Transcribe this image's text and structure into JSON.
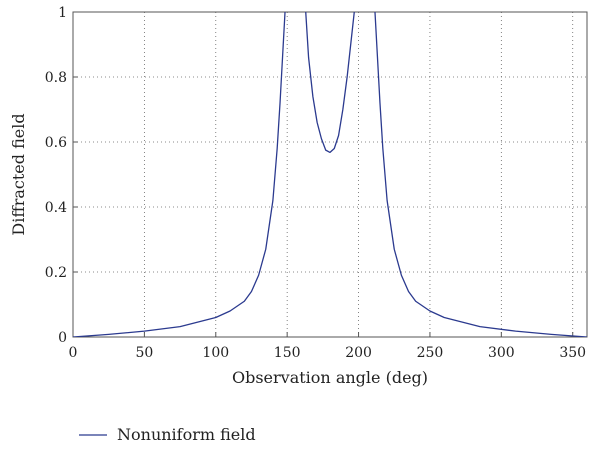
{
  "chart_data": {
    "type": "line",
    "title": "",
    "xlabel": "Observation angle (deg)",
    "ylabel": "Diffracted field",
    "xlim": [
      0,
      360
    ],
    "ylim": [
      0,
      1
    ],
    "xticks": [
      0,
      50,
      100,
      150,
      200,
      250,
      300,
      350
    ],
    "yticks": [
      0,
      0.2,
      0.4,
      0.6,
      0.8,
      1
    ],
    "ytick_labels": [
      "0",
      "0.2",
      "0.4",
      "0.6",
      "0.8",
      "1"
    ],
    "grid": true,
    "grid_style": "dotted",
    "legend_position": "bottom-left, below plot",
    "series": [
      {
        "name": "Nonuniform field",
        "color": "#2b3a8f",
        "segments": [
          {
            "x": [
              0,
              25,
              50,
              75,
              100,
              110,
              120,
              125,
              130,
              135,
              140,
              143,
              145,
              147,
              148.5
            ],
            "y": [
              0,
              0.008,
              0.018,
              0.032,
              0.06,
              0.08,
              0.11,
              0.14,
              0.19,
              0.27,
              0.42,
              0.58,
              0.72,
              0.88,
              1.0
            ]
          },
          {
            "x": [
              163,
              165,
              168,
              171,
              174,
              177,
              180,
              183,
              186,
              189,
              192,
              195,
              197
            ],
            "y": [
              1.0,
              0.86,
              0.74,
              0.66,
              0.61,
              0.575,
              0.568,
              0.58,
              0.62,
              0.7,
              0.8,
              0.92,
              1.0
            ]
          },
          {
            "x": [
              211.5,
              213,
              215,
              217,
              220,
              225,
              230,
              235,
              240,
              250,
              260,
              285,
              310,
              335,
              360
            ],
            "y": [
              1.0,
              0.88,
              0.72,
              0.58,
              0.42,
              0.27,
              0.19,
              0.14,
              0.11,
              0.08,
              0.06,
              0.032,
              0.018,
              0.008,
              0
            ]
          }
        ]
      }
    ]
  }
}
